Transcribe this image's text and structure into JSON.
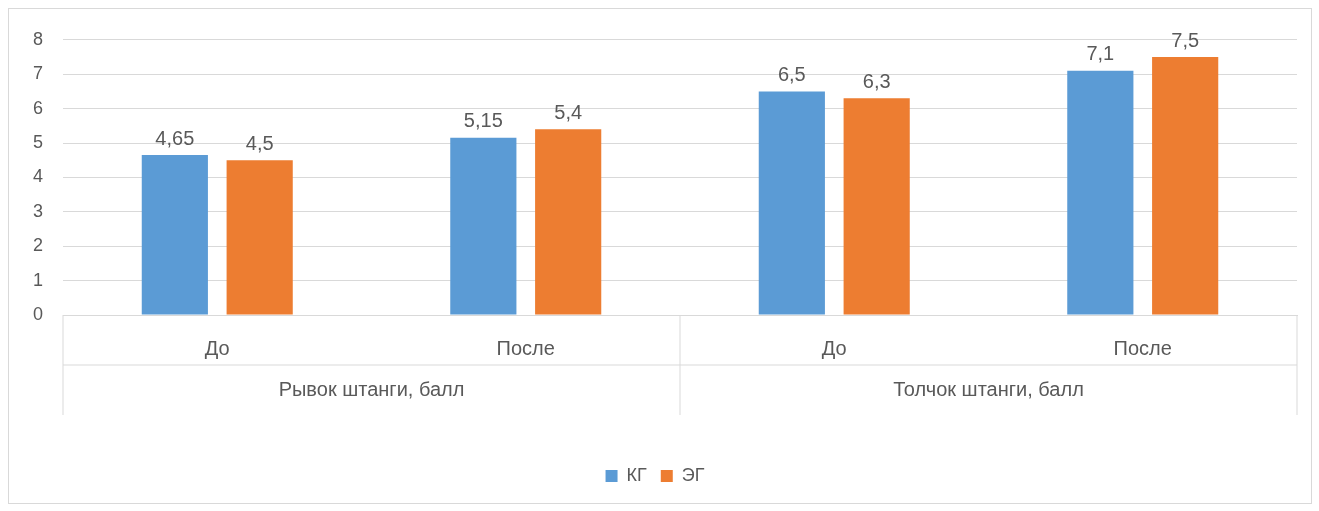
{
  "chart_data": {
    "type": "bar",
    "categories": [
      "До",
      "После",
      "До",
      "После"
    ],
    "series": [
      {
        "name": "КГ",
        "color": "#5b9bd5",
        "values": [
          4.65,
          5.15,
          6.5,
          7.1
        ],
        "value_labels": [
          "4,65",
          "5,15",
          "6,5",
          "7,1"
        ]
      },
      {
        "name": "ЭГ",
        "color": "#ed7d31",
        "values": [
          4.5,
          5.4,
          6.3,
          7.5
        ],
        "value_labels": [
          "4,5",
          "5,4",
          "6,3",
          "7,5"
        ]
      }
    ],
    "ylim": [
      0,
      8
    ],
    "yticks": [
      0,
      1,
      2,
      3,
      4,
      5,
      6,
      7,
      8
    ],
    "grid": "y",
    "legend": "bottom",
    "annotations": [
      "Рывок штанги, балл",
      "Толчок штанги, балл"
    ]
  }
}
